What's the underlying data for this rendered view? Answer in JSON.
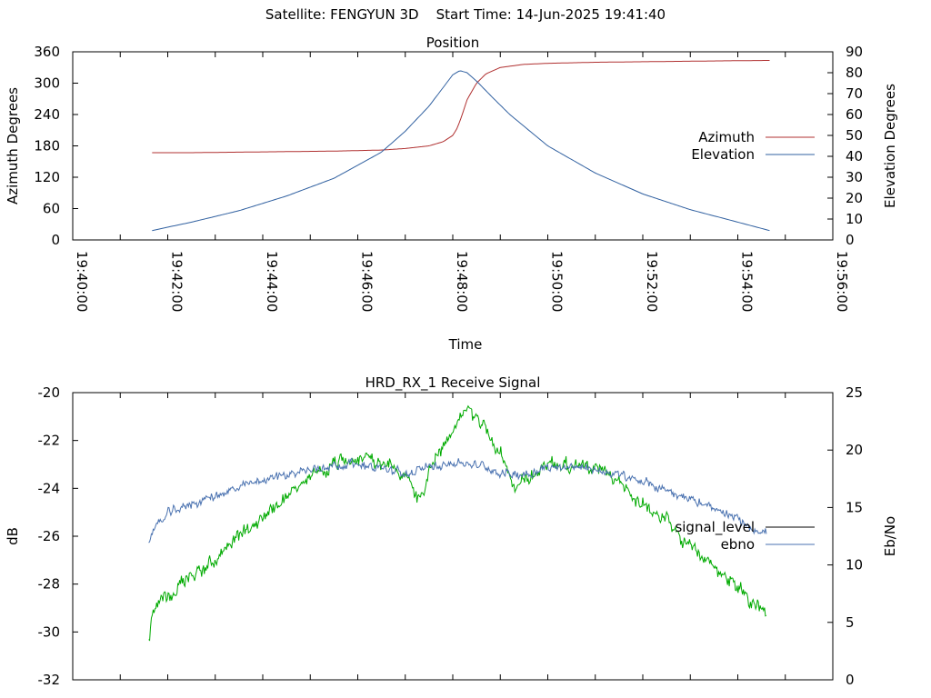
{
  "header": {
    "satellite_label": "Satellite: FENGYUN 3D",
    "start_time_label": "Start Time: 14-Jun-2025 19:41:40"
  },
  "chart_data": [
    {
      "type": "line",
      "title": "Position",
      "xlabel": "Time",
      "ylabel": "Azimuth Degrees",
      "y2label": "Elevation Degrees",
      "x_ticks": [
        "19:40:00",
        "19:42:00",
        "19:44:00",
        "19:46:00",
        "19:48:00",
        "19:50:00",
        "19:52:00",
        "19:54:00",
        "19:56:00"
      ],
      "xlim_minutes": [
        0,
        16
      ],
      "ylim": [
        0,
        360
      ],
      "y_ticks": [
        0,
        60,
        120,
        180,
        240,
        300,
        360
      ],
      "y2lim": [
        0,
        90
      ],
      "y2_ticks": [
        0,
        10,
        20,
        30,
        40,
        50,
        60,
        70,
        80,
        90
      ],
      "grid": false,
      "legend_position": "right",
      "series": [
        {
          "name": "Azimuth",
          "axis": "y",
          "color": "#b03030",
          "x_minutes": [
            1.67,
            2.5,
            3.5,
            4.5,
            5.5,
            6.5,
            7.0,
            7.5,
            7.8,
            8.0,
            8.1,
            8.2,
            8.3,
            8.5,
            8.7,
            9.0,
            9.5,
            10.0,
            11.0,
            12.0,
            13.0,
            14.0,
            14.67
          ],
          "values": [
            167,
            167,
            168,
            169,
            170,
            172,
            175,
            180,
            188,
            200,
            215,
            240,
            268,
            300,
            318,
            330,
            336,
            338,
            340,
            341,
            342,
            343,
            343.5
          ]
        },
        {
          "name": "Elevation",
          "axis": "y2",
          "color": "#3060a0",
          "x_minutes": [
            1.67,
            2.5,
            3.5,
            4.5,
            5.5,
            6.5,
            7.0,
            7.5,
            7.8,
            8.0,
            8.15,
            8.3,
            8.5,
            8.8,
            9.2,
            10.0,
            11.0,
            12.0,
            13.0,
            14.0,
            14.67
          ],
          "values": [
            4.5,
            8.5,
            14,
            21,
            29.5,
            42,
            52,
            64,
            73,
            79,
            81,
            80,
            76,
            69,
            60,
            45,
            32,
            22,
            14.5,
            8.5,
            4.5
          ]
        }
      ]
    },
    {
      "type": "line",
      "title": "HRD_RX_1 Receive Signal",
      "ylabel": "dB",
      "y2label": "Eb/No",
      "xlim_minutes": [
        0,
        16
      ],
      "ylim": [
        -32,
        -20
      ],
      "y_ticks": [
        -32,
        -30,
        -28,
        -26,
        -24,
        -22,
        -20
      ],
      "y2lim": [
        0,
        25
      ],
      "y2_ticks": [
        0,
        5,
        10,
        15,
        20,
        25
      ],
      "grid": false,
      "legend_position": "right",
      "series": [
        {
          "name": "signal_level",
          "axis": "y",
          "color": "#00aa00",
          "legend_color": "#000000",
          "x_minutes": [
            1.6,
            1.7,
            2.0,
            2.5,
            3.0,
            3.5,
            4.0,
            4.5,
            5.0,
            5.5,
            6.0,
            6.5,
            7.0,
            7.3,
            7.6,
            8.0,
            8.3,
            8.6,
            9.0,
            9.3,
            9.6,
            10.0,
            10.5,
            11.0,
            11.5,
            12.0,
            12.5,
            13.0,
            13.5,
            14.0,
            14.3,
            14.6
          ],
          "values": [
            -30.4,
            -29.0,
            -28.5,
            -27.7,
            -27.0,
            -26.0,
            -25.2,
            -24.3,
            -23.6,
            -23.0,
            -22.6,
            -22.9,
            -23.5,
            -24.5,
            -22.8,
            -21.8,
            -20.5,
            -21.2,
            -22.5,
            -24.0,
            -23.6,
            -22.9,
            -23.0,
            -23.2,
            -23.8,
            -24.6,
            -25.4,
            -26.5,
            -27.3,
            -28.1,
            -28.7,
            -29.2
          ]
        },
        {
          "name": "ebno",
          "axis": "y2",
          "color": "#4a72b0",
          "x_minutes": [
            1.6,
            1.7,
            2.0,
            2.5,
            3.0,
            3.5,
            4.0,
            4.5,
            5.0,
            5.5,
            6.0,
            6.5,
            7.0,
            7.3,
            7.6,
            8.0,
            8.3,
            8.6,
            9.0,
            9.5,
            10.0,
            10.5,
            11.0,
            11.5,
            12.0,
            12.5,
            13.0,
            13.5,
            14.0,
            14.3,
            14.6
          ],
          "values": [
            12.2,
            13.0,
            14.5,
            15.3,
            16.0,
            16.7,
            17.4,
            17.9,
            18.3,
            18.7,
            18.8,
            18.4,
            17.9,
            18.2,
            18.7,
            18.9,
            18.8,
            18.6,
            18.0,
            17.9,
            18.5,
            18.6,
            18.3,
            17.8,
            17.2,
            16.5,
            15.8,
            14.8,
            14.0,
            13.2,
            12.8
          ]
        }
      ]
    }
  ]
}
